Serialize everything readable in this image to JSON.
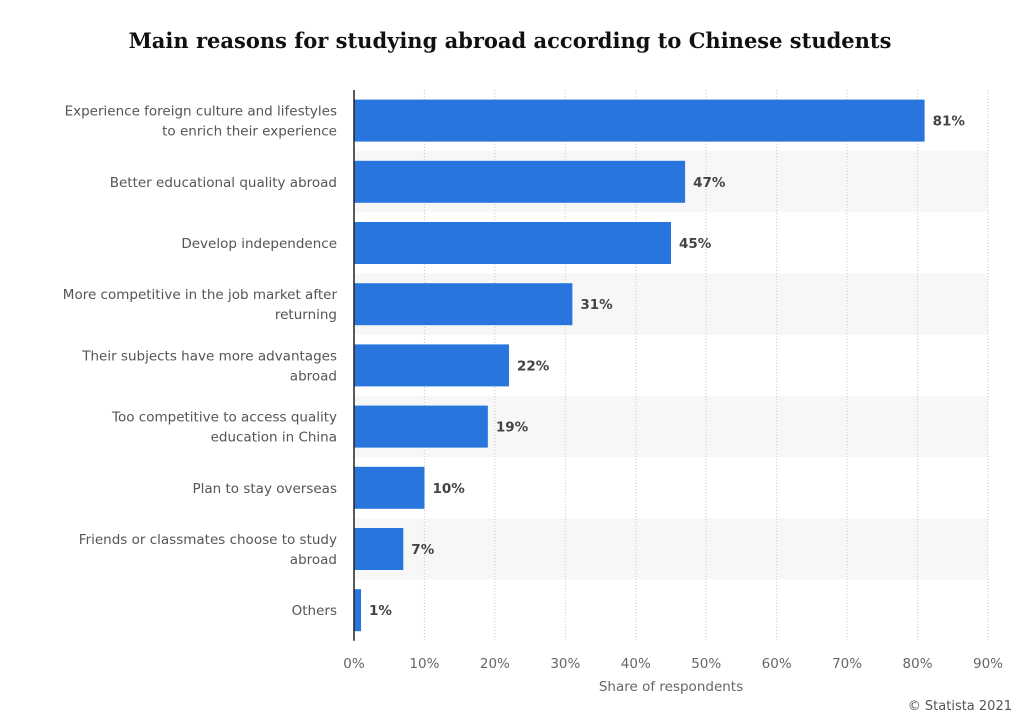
{
  "chart_data": {
    "type": "bar",
    "orientation": "horizontal",
    "title": "Main reasons for studying abroad according to Chinese students",
    "xlabel": "Share of respondents",
    "ylabel": "",
    "xlim": [
      0,
      90
    ],
    "ticks": [
      "0%",
      "10%",
      "20%",
      "30%",
      "40%",
      "50%",
      "60%",
      "70%",
      "80%",
      "90%"
    ],
    "categories": [
      [
        "Experience foreign culture and lifestyles",
        "to enrich their experience"
      ],
      [
        "Better educational quality abroad"
      ],
      [
        "Develop independence"
      ],
      [
        "More competitive in the job market after",
        "returning"
      ],
      [
        "Their subjects have more advantages",
        "abroad"
      ],
      [
        "Too competitive to access quality",
        "education in China"
      ],
      [
        "Plan to stay overseas"
      ],
      [
        "Friends or classmates choose to study",
        "abroad"
      ],
      [
        "Others"
      ]
    ],
    "values": [
      81,
      47,
      45,
      31,
      22,
      19,
      10,
      7,
      1
    ],
    "value_labels": [
      "81%",
      "47%",
      "45%",
      "31%",
      "22%",
      "19%",
      "10%",
      "7%",
      "1%"
    ],
    "grid": true,
    "bar_color": "#2876dd",
    "credit": "© Statista 2021"
  }
}
